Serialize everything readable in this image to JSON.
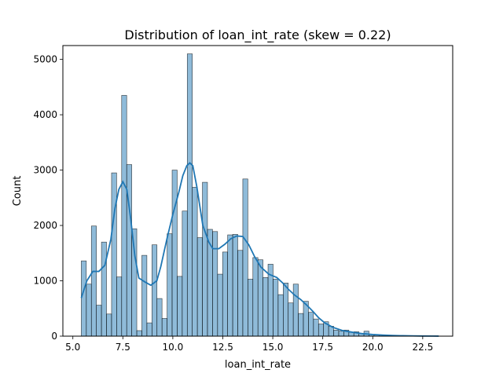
{
  "chart_data": {
    "type": "bar",
    "title": "Distribution of loan_int_rate (skew = 0.22)",
    "xlabel": "loan_int_rate",
    "ylabel": "Count",
    "xlim": [
      4.5,
      24.0
    ],
    "ylim": [
      0,
      5250
    ],
    "xticks": [
      5.0,
      7.5,
      10.0,
      12.5,
      15.0,
      17.5,
      20.0,
      22.5
    ],
    "xtick_labels": [
      "5.0",
      "7.5",
      "10.0",
      "12.5",
      "15.0",
      "17.5",
      "20.0",
      "22.5"
    ],
    "yticks": [
      0,
      1000,
      2000,
      3000,
      4000,
      5000
    ],
    "ytick_labels": [
      "0",
      "1000",
      "2000",
      "3000",
      "4000",
      "5000"
    ],
    "grid": false,
    "bar_color": "#1f77b4",
    "bar_alpha": 0.5,
    "kde_color": "#1f77b4",
    "bin_start": 5.42,
    "bin_width": 0.2525,
    "counts": [
      1360,
      940,
      1990,
      560,
      1700,
      400,
      2950,
      1070,
      4350,
      3100,
      1940,
      100,
      1460,
      240,
      1650,
      680,
      320,
      1850,
      3000,
      1080,
      2260,
      5100,
      2690,
      1780,
      2780,
      1930,
      1890,
      1120,
      1520,
      1830,
      1840,
      1550,
      2840,
      1030,
      1420,
      1380,
      1060,
      1300,
      1030,
      750,
      960,
      600,
      940,
      410,
      630,
      430,
      310,
      220,
      260,
      180,
      110,
      90,
      110,
      70,
      80,
      50,
      90,
      30,
      20,
      20,
      10,
      10,
      8,
      6,
      5,
      3,
      4,
      3,
      2,
      1,
      1,
      1
    ],
    "kde": {
      "x": [
        5.42,
        5.7,
        6.0,
        6.3,
        6.6,
        6.9,
        7.1,
        7.3,
        7.5,
        7.7,
        7.9,
        8.1,
        8.3,
        8.6,
        8.9,
        9.2,
        9.4,
        9.7,
        10.0,
        10.3,
        10.5,
        10.7,
        10.85,
        11.0,
        11.2,
        11.5,
        11.8,
        12.0,
        12.3,
        12.6,
        12.9,
        13.2,
        13.5,
        13.8,
        14.1,
        14.4,
        14.8,
        15.2,
        15.5,
        15.8,
        16.1,
        16.4,
        16.7,
        17.0,
        17.3,
        17.6,
        18.0,
        18.5,
        19.0,
        19.5,
        20.0,
        20.5,
        21.0,
        21.5,
        22.0,
        22.5,
        23.0,
        23.3
      ],
      "y": [
        690,
        1000,
        1170,
        1170,
        1280,
        1750,
        2300,
        2650,
        2790,
        2650,
        2100,
        1450,
        1050,
        980,
        920,
        1000,
        1260,
        1750,
        2200,
        2600,
        2900,
        3080,
        3130,
        3080,
        2700,
        2000,
        1700,
        1580,
        1580,
        1660,
        1760,
        1810,
        1800,
        1650,
        1430,
        1250,
        1120,
        1060,
        960,
        840,
        740,
        660,
        560,
        450,
        330,
        240,
        160,
        100,
        70,
        45,
        30,
        20,
        12,
        8,
        5,
        3,
        2,
        1
      ]
    }
  }
}
